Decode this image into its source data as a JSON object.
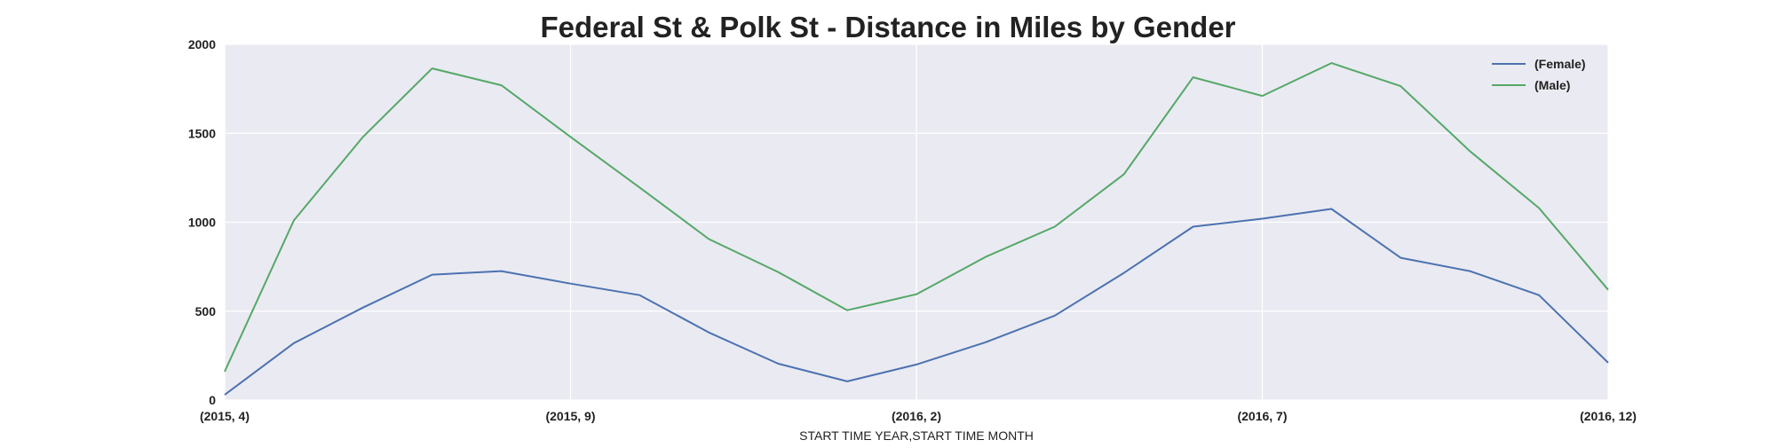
{
  "chart_data": {
    "type": "line",
    "title": "Federal St & Polk St - Distance in Miles by Gender",
    "xlabel": "START TIME YEAR,START TIME MONTH",
    "ylabel": "",
    "categories": [
      "(2015, 4)",
      "(2015, 5)",
      "(2015, 6)",
      "(2015, 7)",
      "(2015, 8)",
      "(2015, 9)",
      "(2015, 10)",
      "(2015, 11)",
      "(2015, 12)",
      "(2016, 1)",
      "(2016, 2)",
      "(2016, 3)",
      "(2016, 4)",
      "(2016, 5)",
      "(2016, 6)",
      "(2016, 7)",
      "(2016, 8)",
      "(2016, 9)",
      "(2016, 10)",
      "(2016, 11)",
      "(2016, 12)"
    ],
    "x_tick_labels": [
      "(2015, 4)",
      "(2015, 9)",
      "(2016, 2)",
      "(2016, 7)",
      "(2016, 12)"
    ],
    "y_ticks": [
      0,
      500,
      1000,
      1500,
      2000
    ],
    "ylim": [
      0,
      2000
    ],
    "grid": true,
    "legend_position": "top-right",
    "series": [
      {
        "name": "(Female)",
        "color": "#4c72b0",
        "values": [
          30,
          320,
          520,
          705,
          725,
          655,
          590,
          380,
          205,
          105,
          200,
          325,
          475,
          715,
          975,
          1020,
          1075,
          800,
          725,
          590,
          210
        ]
      },
      {
        "name": "(Male)",
        "color": "#55a868",
        "values": [
          160,
          1010,
          1480,
          1865,
          1770,
          1480,
          1195,
          905,
          720,
          505,
          595,
          805,
          975,
          1270,
          1815,
          1710,
          1895,
          1765,
          1400,
          1080,
          620
        ]
      }
    ]
  }
}
